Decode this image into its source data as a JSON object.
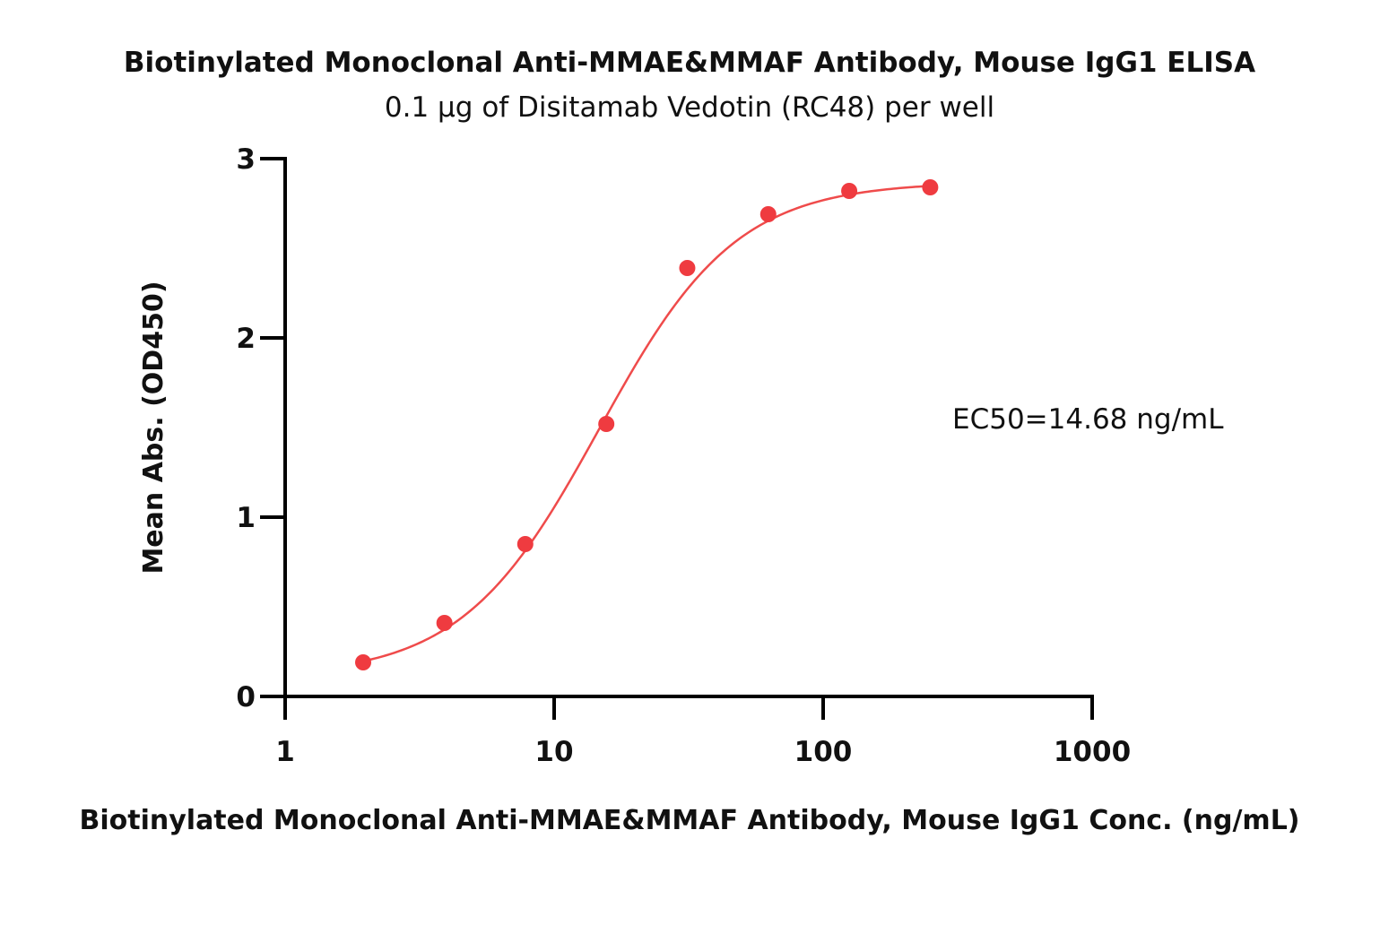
{
  "chart_data": {
    "type": "scatter",
    "title": "Biotinylated Monoclonal Anti-MMAE&MMAF Antibody, Mouse IgG1 ELISA",
    "subtitle": "0.1 μg of Disitamab Vedotin (RC48) per well",
    "xlabel": "Biotinylated Monoclonal Anti-MMAE&MMAF Antibody, Mouse IgG1 Conc. (ng/mL)",
    "ylabel": "Mean Abs. (OD450)",
    "xscale": "log",
    "xlim": [
      1,
      1000
    ],
    "ylim": [
      0,
      3
    ],
    "xticks": [
      1,
      10,
      100,
      1000
    ],
    "xtick_labels": [
      "1",
      "10",
      "100",
      "1000"
    ],
    "yticks": [
      0,
      1,
      2,
      3
    ],
    "ytick_labels": [
      "0",
      "1",
      "2",
      "3"
    ],
    "grid": false,
    "annotation": "EC50=14.68 ng/mL",
    "series": [
      {
        "color": "#ef3b40",
        "x": [
          1.95,
          3.91,
          7.81,
          15.63,
          31.25,
          62.5,
          125,
          250
        ],
        "y": [
          0.19,
          0.41,
          0.85,
          1.52,
          2.39,
          2.69,
          2.82,
          2.84
        ],
        "fit": "4PL",
        "fit_params": {
          "bottom": 0.11,
          "top": 2.87,
          "ec50": 14.68,
          "hill": 1.7
        }
      }
    ]
  }
}
